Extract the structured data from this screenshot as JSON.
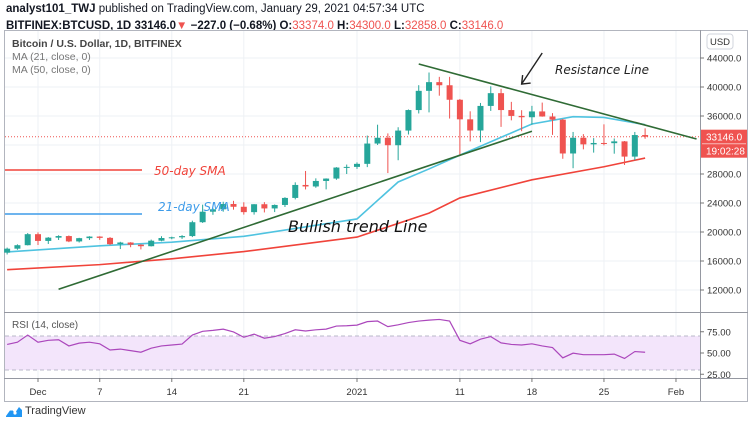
{
  "header": {
    "author": "analyst101_TWJ",
    "published": "published on TradingView.com, January 29, 2021 04:57:34 UTC",
    "symbol": "BITFINEX:BTCUSD, 1D",
    "last": "33146.0",
    "change": "−227.0 (−0.68%)",
    "o_label": "O:",
    "o": "33374.0",
    "h_label": "H:",
    "h": "34300.0",
    "l_label": "L:",
    "l": "32858.0",
    "c_label": "C:",
    "c": "33146.0",
    "direction_icon": "triangle-down-icon"
  },
  "legend": {
    "title": "Bitcoin / U.S. Dollar, 1D, BITFINEX",
    "ma21": "MA (21, close, 0)",
    "ma50": "MA (50, close, 0)"
  },
  "price_axis": {
    "currency": "USD",
    "ticks": [
      "44000.0",
      "40000.0",
      "36000.0",
      "28000.0",
      "24000.0",
      "20000.0",
      "16000.0",
      "12000.0"
    ],
    "last_price_label": "33146.0",
    "countdown": "19:02:28"
  },
  "time_axis": {
    "labels": [
      {
        "text": "Dec",
        "date": "2020-12-01"
      },
      {
        "text": "7",
        "date": "2020-12-07"
      },
      {
        "text": "14",
        "date": "2020-12-14"
      },
      {
        "text": "21",
        "date": "2020-12-21"
      },
      {
        "text": "2021",
        "date": "2021-01-01"
      },
      {
        "text": "11",
        "date": "2021-01-11"
      },
      {
        "text": "18",
        "date": "2021-01-18"
      },
      {
        "text": "25",
        "date": "2021-01-25"
      },
      {
        "text": "Feb",
        "date": "2021-02-01"
      }
    ]
  },
  "rsi_pane": {
    "title": "RSI (14, close)",
    "ticks": [
      "75.00",
      "50.00",
      "25.00"
    ],
    "band": [
      30,
      70
    ]
  },
  "annotations": {
    "resistance": "Resistance Line",
    "sma50": "50-day SMA",
    "sma21": "21-day SMA",
    "bullish": "Bullish trend Line"
  },
  "colors": {
    "up": "#26a69a",
    "down": "#ef5350",
    "ma21": "#4fc3e0",
    "ma50": "#f0433a",
    "trendline": "#2f6b35",
    "rsi": "#ab47bc",
    "rsi_band": "#f3e5fb",
    "grid": "#eef1f5"
  },
  "brand": "TradingView",
  "chart_data": {
    "type": "candlestick",
    "title": "Bitcoin / U.S. Dollar, 1D, BITFINEX",
    "ylim": [
      9500,
      47500
    ],
    "grid": true,
    "candles": [
      {
        "d": "2020-11-28",
        "o": 17150,
        "h": 17850,
        "l": 16900,
        "c": 17700
      },
      {
        "d": "2020-11-29",
        "o": 17700,
        "h": 18300,
        "l": 17550,
        "c": 18180
      },
      {
        "d": "2020-11-30",
        "o": 18180,
        "h": 19850,
        "l": 18150,
        "c": 19700
      },
      {
        "d": "2020-12-01",
        "o": 19700,
        "h": 19950,
        "l": 18200,
        "c": 18770
      },
      {
        "d": "2020-12-02",
        "o": 18770,
        "h": 19300,
        "l": 18350,
        "c": 19220
      },
      {
        "d": "2020-12-03",
        "o": 19220,
        "h": 19550,
        "l": 18900,
        "c": 19440
      },
      {
        "d": "2020-12-04",
        "o": 19440,
        "h": 19520,
        "l": 18600,
        "c": 18700
      },
      {
        "d": "2020-12-05",
        "o": 18700,
        "h": 19200,
        "l": 18550,
        "c": 19150
      },
      {
        "d": "2020-12-06",
        "o": 19150,
        "h": 19420,
        "l": 18900,
        "c": 19370
      },
      {
        "d": "2020-12-07",
        "o": 19370,
        "h": 19420,
        "l": 18920,
        "c": 19190
      },
      {
        "d": "2020-12-08",
        "o": 19190,
        "h": 19300,
        "l": 18200,
        "c": 18320
      },
      {
        "d": "2020-12-09",
        "o": 18320,
        "h": 18650,
        "l": 17650,
        "c": 18550
      },
      {
        "d": "2020-12-10",
        "o": 18550,
        "h": 18600,
        "l": 17900,
        "c": 18250
      },
      {
        "d": "2020-12-11",
        "o": 18250,
        "h": 18300,
        "l": 17600,
        "c": 18040
      },
      {
        "d": "2020-12-12",
        "o": 18040,
        "h": 18950,
        "l": 18000,
        "c": 18800
      },
      {
        "d": "2020-12-13",
        "o": 18800,
        "h": 19420,
        "l": 18720,
        "c": 19170
      },
      {
        "d": "2020-12-14",
        "o": 19170,
        "h": 19350,
        "l": 19000,
        "c": 19270
      },
      {
        "d": "2020-12-15",
        "o": 19270,
        "h": 19570,
        "l": 19050,
        "c": 19440
      },
      {
        "d": "2020-12-16",
        "o": 19440,
        "h": 21560,
        "l": 19300,
        "c": 21350
      },
      {
        "d": "2020-12-17",
        "o": 21350,
        "h": 23770,
        "l": 21250,
        "c": 22800
      },
      {
        "d": "2020-12-18",
        "o": 22800,
        "h": 23290,
        "l": 22370,
        "c": 23130
      },
      {
        "d": "2020-12-19",
        "o": 23130,
        "h": 24170,
        "l": 22800,
        "c": 23860
      },
      {
        "d": "2020-12-20",
        "o": 23860,
        "h": 24300,
        "l": 23080,
        "c": 23480
      },
      {
        "d": "2020-12-21",
        "o": 23480,
        "h": 24100,
        "l": 22400,
        "c": 22740
      },
      {
        "d": "2020-12-22",
        "o": 22740,
        "h": 23840,
        "l": 22400,
        "c": 23830
      },
      {
        "d": "2020-12-23",
        "o": 23830,
        "h": 24120,
        "l": 22700,
        "c": 23250
      },
      {
        "d": "2020-12-24",
        "o": 23250,
        "h": 23800,
        "l": 22750,
        "c": 23730
      },
      {
        "d": "2020-12-25",
        "o": 23730,
        "h": 24800,
        "l": 23450,
        "c": 24700
      },
      {
        "d": "2020-12-26",
        "o": 24700,
        "h": 26850,
        "l": 24500,
        "c": 26490
      },
      {
        "d": "2020-12-27",
        "o": 26490,
        "h": 28420,
        "l": 25870,
        "c": 26280
      },
      {
        "d": "2020-12-28",
        "o": 26280,
        "h": 27400,
        "l": 26100,
        "c": 27040
      },
      {
        "d": "2020-12-29",
        "o": 27040,
        "h": 27400,
        "l": 25880,
        "c": 27370
      },
      {
        "d": "2020-12-30",
        "o": 27370,
        "h": 28950,
        "l": 27200,
        "c": 28890
      },
      {
        "d": "2020-12-31",
        "o": 28890,
        "h": 29300,
        "l": 28000,
        "c": 28980
      },
      {
        "d": "2021-01-01",
        "o": 28980,
        "h": 29600,
        "l": 28700,
        "c": 29400
      },
      {
        "d": "2021-01-02",
        "o": 29400,
        "h": 33300,
        "l": 28950,
        "c": 32200
      },
      {
        "d": "2021-01-03",
        "o": 32200,
        "h": 34800,
        "l": 32000,
        "c": 33000
      },
      {
        "d": "2021-01-04",
        "o": 33000,
        "h": 33600,
        "l": 28130,
        "c": 31970
      },
      {
        "d": "2021-01-05",
        "o": 31970,
        "h": 34450,
        "l": 29900,
        "c": 33990
      },
      {
        "d": "2021-01-06",
        "o": 33990,
        "h": 36900,
        "l": 33450,
        "c": 36820
      },
      {
        "d": "2021-01-07",
        "o": 36820,
        "h": 40250,
        "l": 36350,
        "c": 39470
      },
      {
        "d": "2021-01-08",
        "o": 39470,
        "h": 42000,
        "l": 36500,
        "c": 40670
      },
      {
        "d": "2021-01-09",
        "o": 40670,
        "h": 41400,
        "l": 38800,
        "c": 40240
      },
      {
        "d": "2021-01-10",
        "o": 40240,
        "h": 41400,
        "l": 35650,
        "c": 38240
      },
      {
        "d": "2021-01-11",
        "o": 38240,
        "h": 38350,
        "l": 30500,
        "c": 35540
      },
      {
        "d": "2021-01-12",
        "o": 35540,
        "h": 36650,
        "l": 32500,
        "c": 34000
      },
      {
        "d": "2021-01-13",
        "o": 34000,
        "h": 37800,
        "l": 32400,
        "c": 37390
      },
      {
        "d": "2021-01-14",
        "o": 37390,
        "h": 40100,
        "l": 36700,
        "c": 39150
      },
      {
        "d": "2021-01-15",
        "o": 39150,
        "h": 39750,
        "l": 34500,
        "c": 36820
      },
      {
        "d": "2021-01-16",
        "o": 36820,
        "h": 37950,
        "l": 35400,
        "c": 36010
      },
      {
        "d": "2021-01-17",
        "o": 36010,
        "h": 36800,
        "l": 33900,
        "c": 35830
      },
      {
        "d": "2021-01-18",
        "o": 35830,
        "h": 37400,
        "l": 34800,
        "c": 36630
      },
      {
        "d": "2021-01-19",
        "o": 36630,
        "h": 37850,
        "l": 35900,
        "c": 35930
      },
      {
        "d": "2021-01-20",
        "o": 35930,
        "h": 36400,
        "l": 33400,
        "c": 35500
      },
      {
        "d": "2021-01-21",
        "o": 35500,
        "h": 35600,
        "l": 30100,
        "c": 30830
      },
      {
        "d": "2021-01-22",
        "o": 30830,
        "h": 33800,
        "l": 28800,
        "c": 33000
      },
      {
        "d": "2021-01-23",
        "o": 33000,
        "h": 33500,
        "l": 31400,
        "c": 32090
      },
      {
        "d": "2021-01-24",
        "o": 32090,
        "h": 32950,
        "l": 30950,
        "c": 32280
      },
      {
        "d": "2021-01-25",
        "o": 32280,
        "h": 34850,
        "l": 31950,
        "c": 32250
      },
      {
        "d": "2021-01-26",
        "o": 32250,
        "h": 32900,
        "l": 30800,
        "c": 32500
      },
      {
        "d": "2021-01-27",
        "o": 32500,
        "h": 32550,
        "l": 29250,
        "c": 30400
      },
      {
        "d": "2021-01-28",
        "o": 30400,
        "h": 33800,
        "l": 29900,
        "c": 33373
      },
      {
        "d": "2021-01-29",
        "o": 33374,
        "h": 34300,
        "l": 32858,
        "c": 33146
      }
    ],
    "ma21": [
      {
        "d": "2020-11-28",
        "v": 17250
      },
      {
        "d": "2020-12-07",
        "v": 18100
      },
      {
        "d": "2020-12-14",
        "v": 18600
      },
      {
        "d": "2020-12-21",
        "v": 19400
      },
      {
        "d": "2021-01-01",
        "v": 21800
      },
      {
        "d": "2021-01-05",
        "v": 26900
      },
      {
        "d": "2021-01-08",
        "v": 28700
      },
      {
        "d": "2021-01-11",
        "v": 30600
      },
      {
        "d": "2021-01-18",
        "v": 34900
      },
      {
        "d": "2021-01-22",
        "v": 35900
      },
      {
        "d": "2021-01-25",
        "v": 35800
      },
      {
        "d": "2021-01-29",
        "v": 34800
      }
    ],
    "ma50": [
      {
        "d": "2020-11-28",
        "v": 14800
      },
      {
        "d": "2020-12-07",
        "v": 15500
      },
      {
        "d": "2020-12-14",
        "v": 16300
      },
      {
        "d": "2020-12-21",
        "v": 17300
      },
      {
        "d": "2021-01-01",
        "v": 19300
      },
      {
        "d": "2021-01-08",
        "v": 22600
      },
      {
        "d": "2021-01-11",
        "v": 24700
      },
      {
        "d": "2021-01-18",
        "v": 27200
      },
      {
        "d": "2021-01-25",
        "v": 29000
      },
      {
        "d": "2021-01-29",
        "v": 30200
      }
    ],
    "trendlines": {
      "bullish": {
        "from": {
          "d": "2020-12-03",
          "p": 12100
        },
        "to": {
          "d": "2021-01-18",
          "p": 33900
        }
      },
      "resistance": {
        "from": {
          "d": "2021-01-07",
          "p": 43170
        },
        "to": {
          "d": "2021-02-03",
          "p": 32830
        }
      },
      "arrow": {
        "from": {
          "d": "2021-01-19",
          "p": 44690
        },
        "to": {
          "d": "2021-01-17",
          "p": 40410
        }
      }
    },
    "last_price": 33146,
    "rsi": {
      "ylim": [
        20,
        100
      ],
      "values": [
        60.1,
        62.7,
        71.1,
        62.7,
        64.9,
        65.6,
        58.3,
        61.6,
        62.7,
        60.8,
        53.5,
        54.6,
        52.8,
        50.9,
        55.7,
        58.3,
        59.4,
        60.5,
        71.1,
        75.5,
        76.6,
        78.1,
        74.8,
        68.5,
        72.2,
        67.4,
        69.3,
        72.9,
        77.3,
        75.9,
        77.3,
        78.1,
        81.7,
        82.1,
        82.8,
        86.9,
        87.6,
        81.0,
        83.2,
        85.8,
        87.6,
        88.7,
        89.5,
        87.6,
        64.9,
        60.8,
        66.3,
        69.3,
        61.9,
        60.1,
        59.4,
        60.8,
        58.3,
        56.4,
        44.3,
        49.8,
        48.0,
        48.0,
        48.0,
        48.7,
        43.6,
        51.7,
        50.9
      ]
    }
  }
}
